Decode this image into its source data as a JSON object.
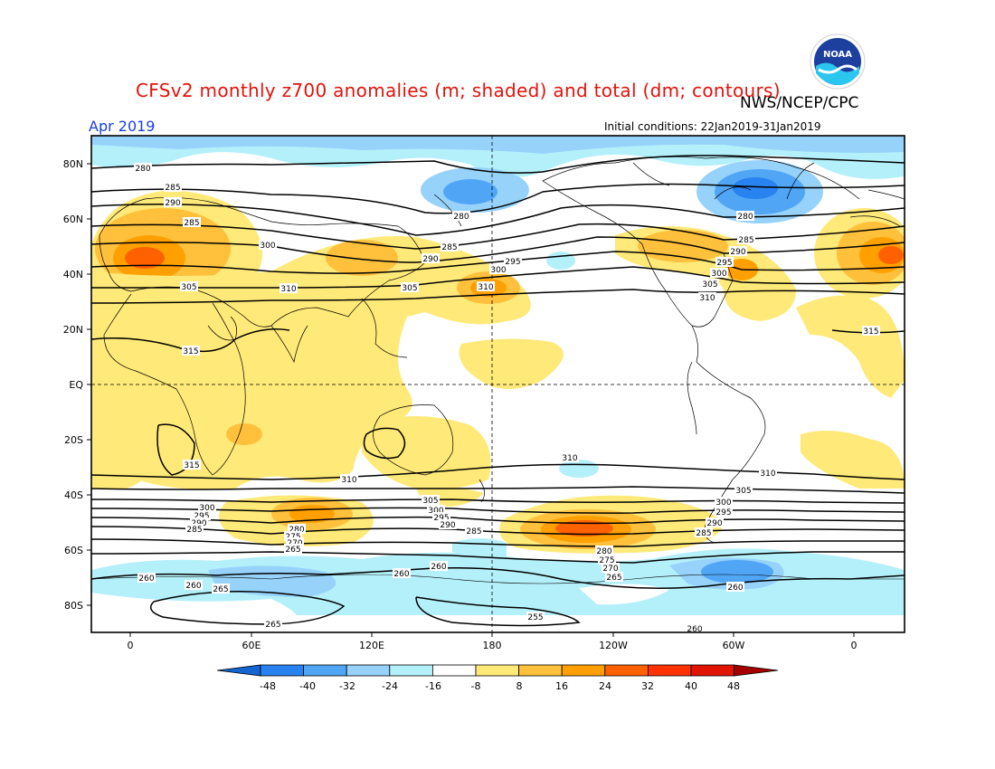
{
  "header": {
    "title": "CFSv2 monthly z700 anomalies (m; shaded) and total (dm; contours)",
    "agency": "NWS/NCEP/CPC",
    "valid_month": "Apr 2019",
    "initial_conditions": "Initial conditions: 22Jan2019-31Jan2019"
  },
  "logo": {
    "icon": "noaa-logo-icon",
    "text": "NOAA"
  },
  "axes": {
    "lat_labels": [
      "80N",
      "60N",
      "40N",
      "20N",
      "EQ",
      "20S",
      "40S",
      "60S",
      "80S"
    ],
    "lon_labels": [
      "0",
      "60E",
      "120E",
      "180",
      "120W",
      "60W",
      "0"
    ]
  },
  "colorbar": {
    "ticks": [
      "-48",
      "-40",
      "-32",
      "-24",
      "-16",
      "-8",
      "8",
      "16",
      "24",
      "32",
      "40",
      "48"
    ],
    "colors": [
      "#1464d2",
      "#2882f0",
      "#50a5f5",
      "#96d2fa",
      "#b4f0fa",
      "#ffffff",
      "#ffe978",
      "#ffc03c",
      "#ffa000",
      "#ff6000",
      "#ff3200",
      "#e11400",
      "#a50000"
    ]
  },
  "contour_labels": [
    "280",
    "285",
    "290",
    "285",
    "300",
    "305",
    "310",
    "315",
    "280",
    "285",
    "290",
    "295",
    "300",
    "305",
    "310",
    "280",
    "285",
    "290",
    "295",
    "300",
    "305",
    "310",
    "315",
    "310",
    "315",
    "310",
    "310",
    "305",
    "300",
    "295",
    "290",
    "285",
    "300",
    "295",
    "290",
    "285",
    "280",
    "275",
    "270",
    "265",
    "305",
    "300",
    "295",
    "290",
    "285",
    "280",
    "275",
    "270",
    "265",
    "305",
    "300",
    "295",
    "290",
    "285",
    "260",
    "260",
    "265",
    "260",
    "260",
    "255",
    "265",
    "260",
    "260"
  ]
}
